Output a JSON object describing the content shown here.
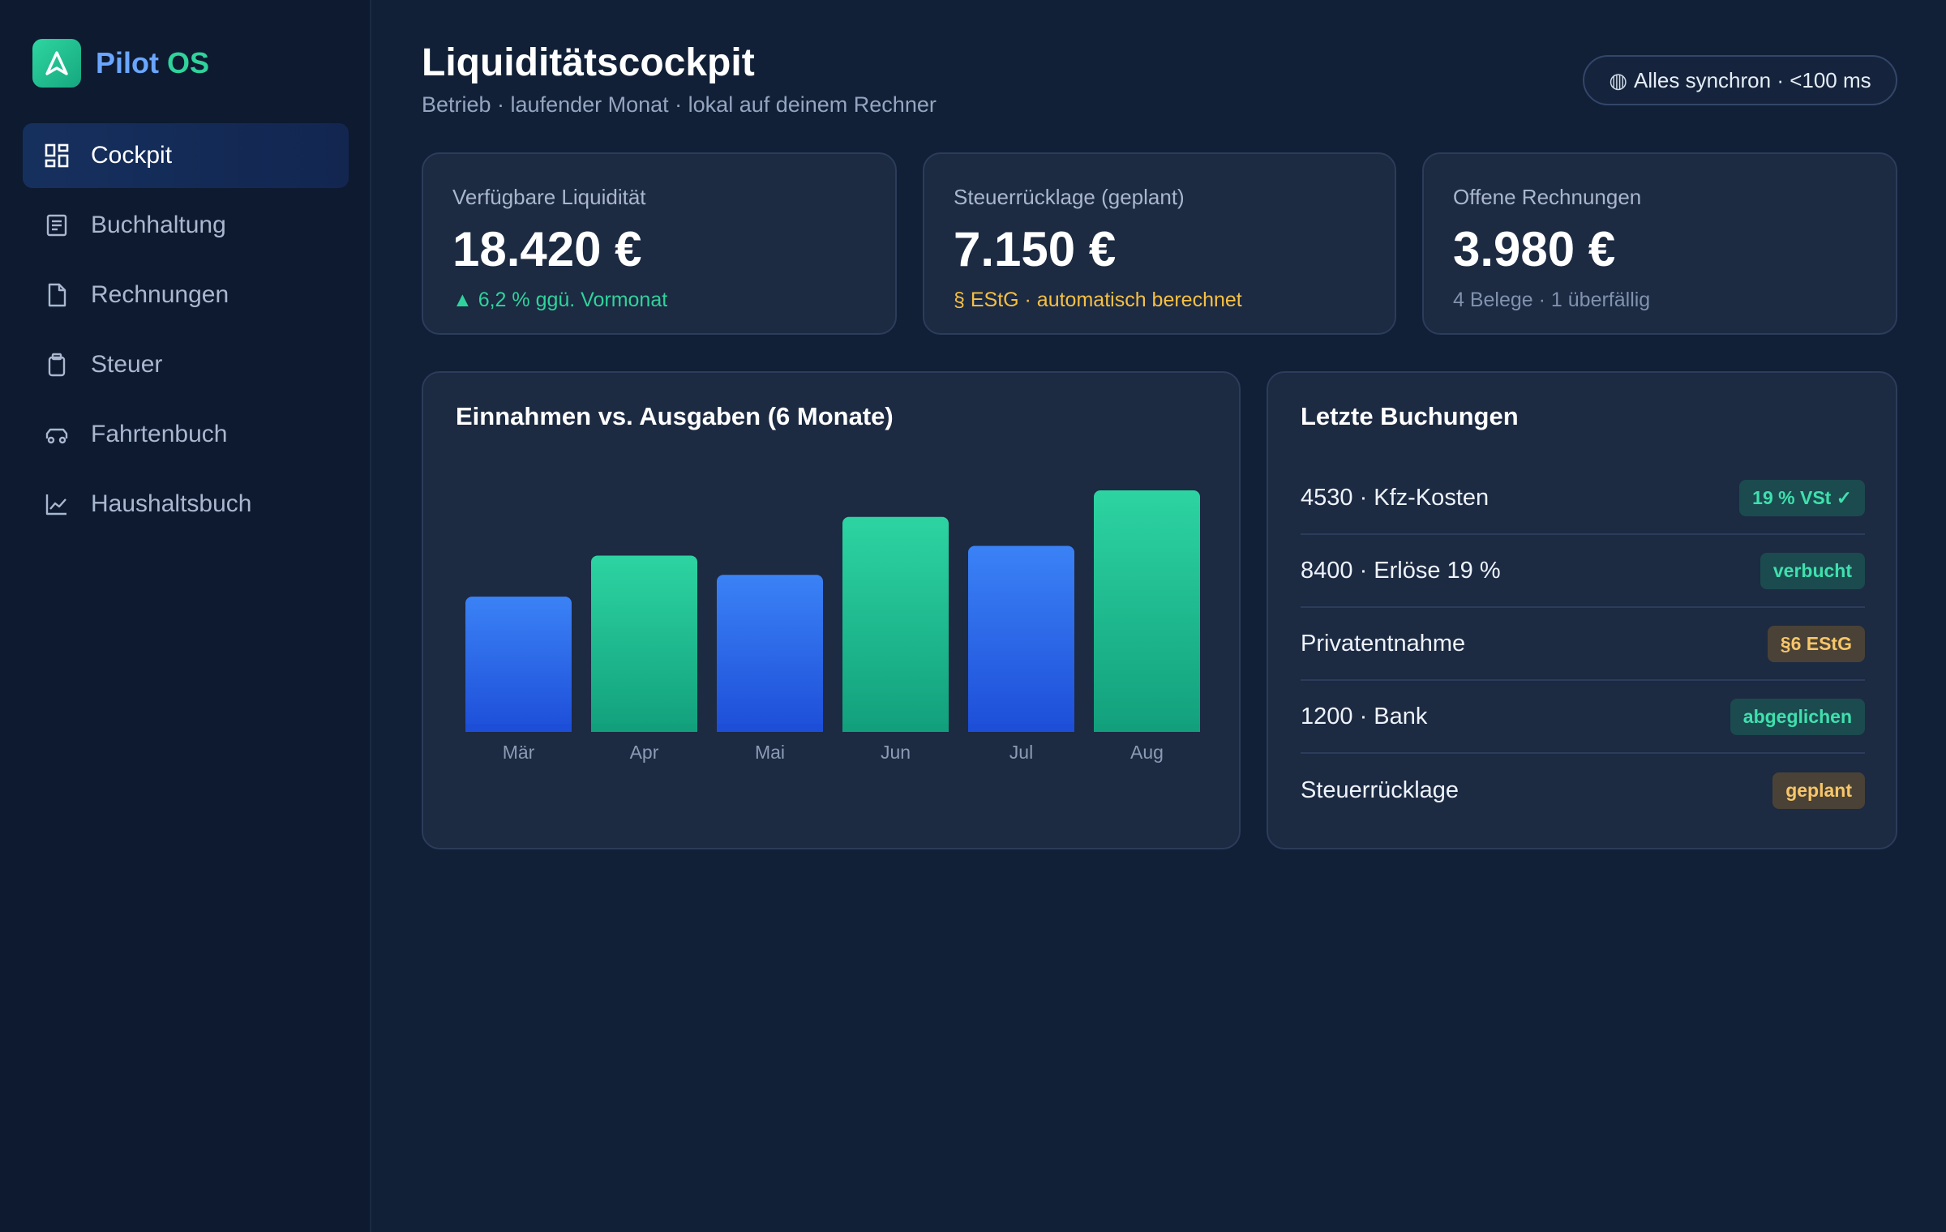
{
  "brand": {
    "name_part1": "Pilot",
    "name_part2": "OS"
  },
  "sidebar": {
    "items": [
      {
        "label": "Cockpit",
        "icon": "grid-icon",
        "active": true
      },
      {
        "label": "Buchhaltung",
        "icon": "ledger-icon",
        "active": false
      },
      {
        "label": "Rechnungen",
        "icon": "document-icon",
        "active": false
      },
      {
        "label": "Steuer",
        "icon": "clipboard-icon",
        "active": false
      },
      {
        "label": "Fahrtenbuch",
        "icon": "car-icon",
        "active": false
      },
      {
        "label": "Haushaltsbuch",
        "icon": "line-chart-icon",
        "active": false
      }
    ]
  },
  "header": {
    "title": "Liquiditätscockpit",
    "subtitle": "Betrieb · laufender Monat · lokal auf deinem Rechner",
    "sync_icon": "◍",
    "sync_status": "Alles synchron · <100 ms"
  },
  "kpis": [
    {
      "label": "Verfügbare Liquidität",
      "value": "18.420 €",
      "note": "▲ 6,2 % ggü. Vormonat",
      "note_color": "#2fd39b"
    },
    {
      "label": "Steuerrücklage (geplant)",
      "value": "7.150 €",
      "note": "§ EStG · automatisch berechnet",
      "note_color": "#f5c044"
    },
    {
      "label": "Offene Rechnungen",
      "value": "3.980 €",
      "note": "4 Belege · 1 überfällig",
      "note_color": "#8092ad"
    }
  ],
  "chart": {
    "title": "Einnahmen vs. Ausgaben (6 Monate)"
  },
  "chart_data": {
    "type": "bar",
    "title": "Einnahmen vs. Ausgaben (6 Monate)",
    "categories": [
      "Mär",
      "Apr",
      "Mai",
      "Jun",
      "Jul",
      "Aug"
    ],
    "values": [
      56,
      73,
      65,
      89,
      77,
      100
    ],
    "colors": [
      "#3b7cf5",
      "#2bd3a0",
      "#3b7cf5",
      "#2bd3a0",
      "#3b7cf5",
      "#2bd3a0"
    ],
    "ylim": [
      0,
      100
    ],
    "grid": false,
    "xlabel": "",
    "ylabel": ""
  },
  "bookings": {
    "title": "Letzte Buchungen",
    "rows": [
      {
        "label": "4530 · Kfz-Kosten",
        "badge": "19 % VSt ✓",
        "tone": "teal"
      },
      {
        "label": "8400 · Erlöse 19 %",
        "badge": "verbucht",
        "tone": "teal"
      },
      {
        "label": "Privatentnahme",
        "badge": "§6 EStG",
        "tone": "amber"
      },
      {
        "label": "1200 · Bank",
        "badge": "abgeglichen",
        "tone": "teal"
      },
      {
        "label": "Steuerrücklage",
        "badge": "geplant",
        "tone": "amber"
      }
    ]
  }
}
